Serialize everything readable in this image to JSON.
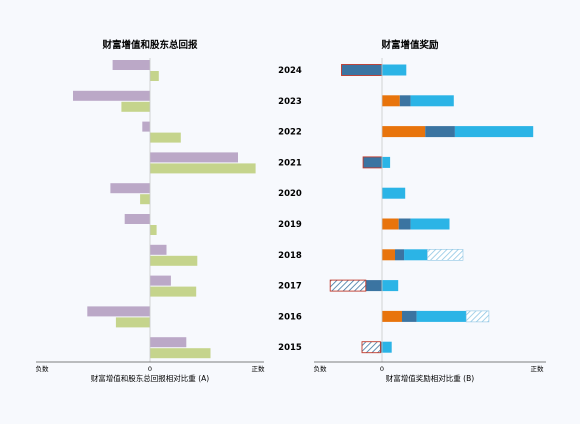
{
  "colors": {
    "background": "#f7f9fd",
    "left_purple": "#bba8c7",
    "left_green": "#c5d48c",
    "orange": "#e8740c",
    "steel_blue": "#3b74a1",
    "sky_blue": "#2bb4e6",
    "negative_outline": "#c0392b",
    "hatch": "#8fc6e4",
    "axis": "#555555"
  },
  "chart_data": [
    {
      "type": "bar",
      "orientation": "horizontal",
      "title": "财富增值和股东总回报",
      "xlabel": "财富增值和股东总回报相对比重 (A)",
      "x_tick_labels": {
        "min": "负数",
        "zero": "0",
        "max": "正数"
      },
      "xlim": [
        -1.0,
        1.0
      ],
      "categories": [
        "2024",
        "2023",
        "2022",
        "2021",
        "2020",
        "2019",
        "2018",
        "2017",
        "2016",
        "2015"
      ],
      "series": [
        {
          "values": [
            -0.34,
            -0.7,
            -0.07,
            0.8,
            -0.36,
            -0.23,
            0.15,
            0.19,
            -0.57,
            0.33
          ]
        },
        {
          "values": [
            0.08,
            -0.26,
            0.28,
            0.96,
            -0.09,
            0.06,
            0.43,
            0.42,
            -0.31,
            0.55
          ]
        }
      ]
    },
    {
      "type": "bar",
      "orientation": "horizontal",
      "stacked": true,
      "title": "财富增值奖励",
      "xlabel": "财富增值奖励相对比重 (B)",
      "x_tick_labels": {
        "min": "负数",
        "zero": "0",
        "max": "正数"
      },
      "xlim": [
        -1.0,
        1.3
      ],
      "categories": [
        "2024",
        "2023",
        "2022",
        "2021",
        "2020",
        "2019",
        "2018",
        "2017",
        "2016",
        "2015"
      ],
      "stacks": [
        {
          "category": "2024",
          "segments": [
            {
              "color": "steel_blue",
              "value": -0.75,
              "outline": true
            },
            {
              "color": "sky_blue",
              "value": 0.45
            }
          ]
        },
        {
          "category": "2023",
          "segments": [
            {
              "color": "orange",
              "value": 0.33
            },
            {
              "color": "steel_blue",
              "value": 0.2
            },
            {
              "color": "sky_blue",
              "value": 0.8
            }
          ]
        },
        {
          "category": "2022",
          "segments": [
            {
              "color": "orange",
              "value": 0.8
            },
            {
              "color": "steel_blue",
              "value": 0.55
            },
            {
              "color": "sky_blue",
              "value": 1.45
            }
          ]
        },
        {
          "category": "2021",
          "segments": [
            {
              "color": "steel_blue",
              "value": -0.35,
              "outline": true
            },
            {
              "color": "sky_blue",
              "value": 0.15
            }
          ]
        },
        {
          "category": "2020",
          "segments": [
            {
              "color": "sky_blue",
              "value": 0.43
            }
          ]
        },
        {
          "category": "2019",
          "segments": [
            {
              "color": "orange",
              "value": 0.31
            },
            {
              "color": "steel_blue",
              "value": 0.22
            },
            {
              "color": "sky_blue",
              "value": 0.72
            }
          ]
        },
        {
          "category": "2018",
          "segments": [
            {
              "color": "orange",
              "value": 0.24
            },
            {
              "color": "steel_blue",
              "value": 0.17
            },
            {
              "color": "sky_blue",
              "value": 0.43
            },
            {
              "color": "hatch",
              "value": 0.66,
              "hatched": true
            }
          ]
        },
        {
          "category": "2017",
          "segments": [
            {
              "color": "steel_blue",
              "value": -0.3
            },
            {
              "color": "hatch",
              "value": -0.66,
              "hatched": true,
              "outline": true
            },
            {
              "color": "sky_blue",
              "value": 0.3
            }
          ]
        },
        {
          "category": "2016",
          "segments": [
            {
              "color": "orange",
              "value": 0.37
            },
            {
              "color": "steel_blue",
              "value": 0.27
            },
            {
              "color": "sky_blue",
              "value": 0.92
            },
            {
              "color": "hatch",
              "value": 0.42,
              "hatched": true
            }
          ]
        },
        {
          "category": "2015",
          "segments": [
            {
              "color": "steel_blue",
              "value": -0.03
            },
            {
              "color": "hatch",
              "value": -0.34,
              "hatched": true,
              "outline": true
            },
            {
              "color": "sky_blue",
              "value": 0.18
            }
          ]
        }
      ]
    }
  ]
}
